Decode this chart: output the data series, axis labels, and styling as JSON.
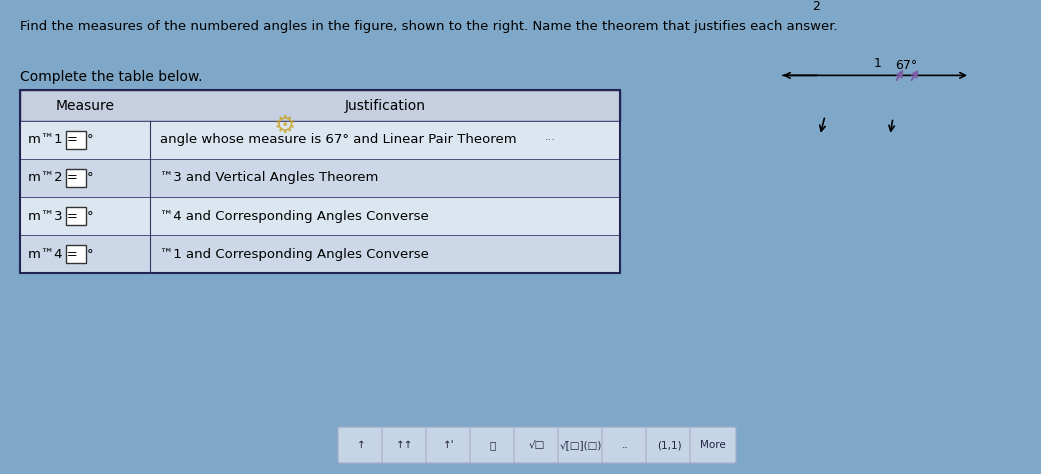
{
  "title": "Find the measures of the numbered angles in the figure, shown to the right. Name the theorem that justifies each answer.",
  "subtitle": "Complete the table below.",
  "background_color": "#add8e6",
  "table_header": [
    "Measure",
    "Justification"
  ],
  "table_rows": [
    [
      "m™1 = □°",
      "angle whose measure is 67° and Linear Pair Theorem"
    ],
    [
      "m™2 = □°",
      "™3 and Vertical Angles Theorem"
    ],
    [
      "m™3 = □°",
      "™4 and Corresponding Angles Converse"
    ],
    [
      "m™4 = □°",
      "™1 and Corresponding Angles Converse"
    ]
  ],
  "toolbar_items": [
    "•",
    "••",
    "•'",
    "||",
    "√□",
    "√[□](□)",
    "..",
    "(1,1)",
    "More"
  ],
  "fig_bg": "#7fa8c8",
  "content_bg": "#b8d4e8",
  "toolbar_bg": "#6b96b8",
  "angle_label": "67°",
  "arrow_color": "#7b5ea7"
}
